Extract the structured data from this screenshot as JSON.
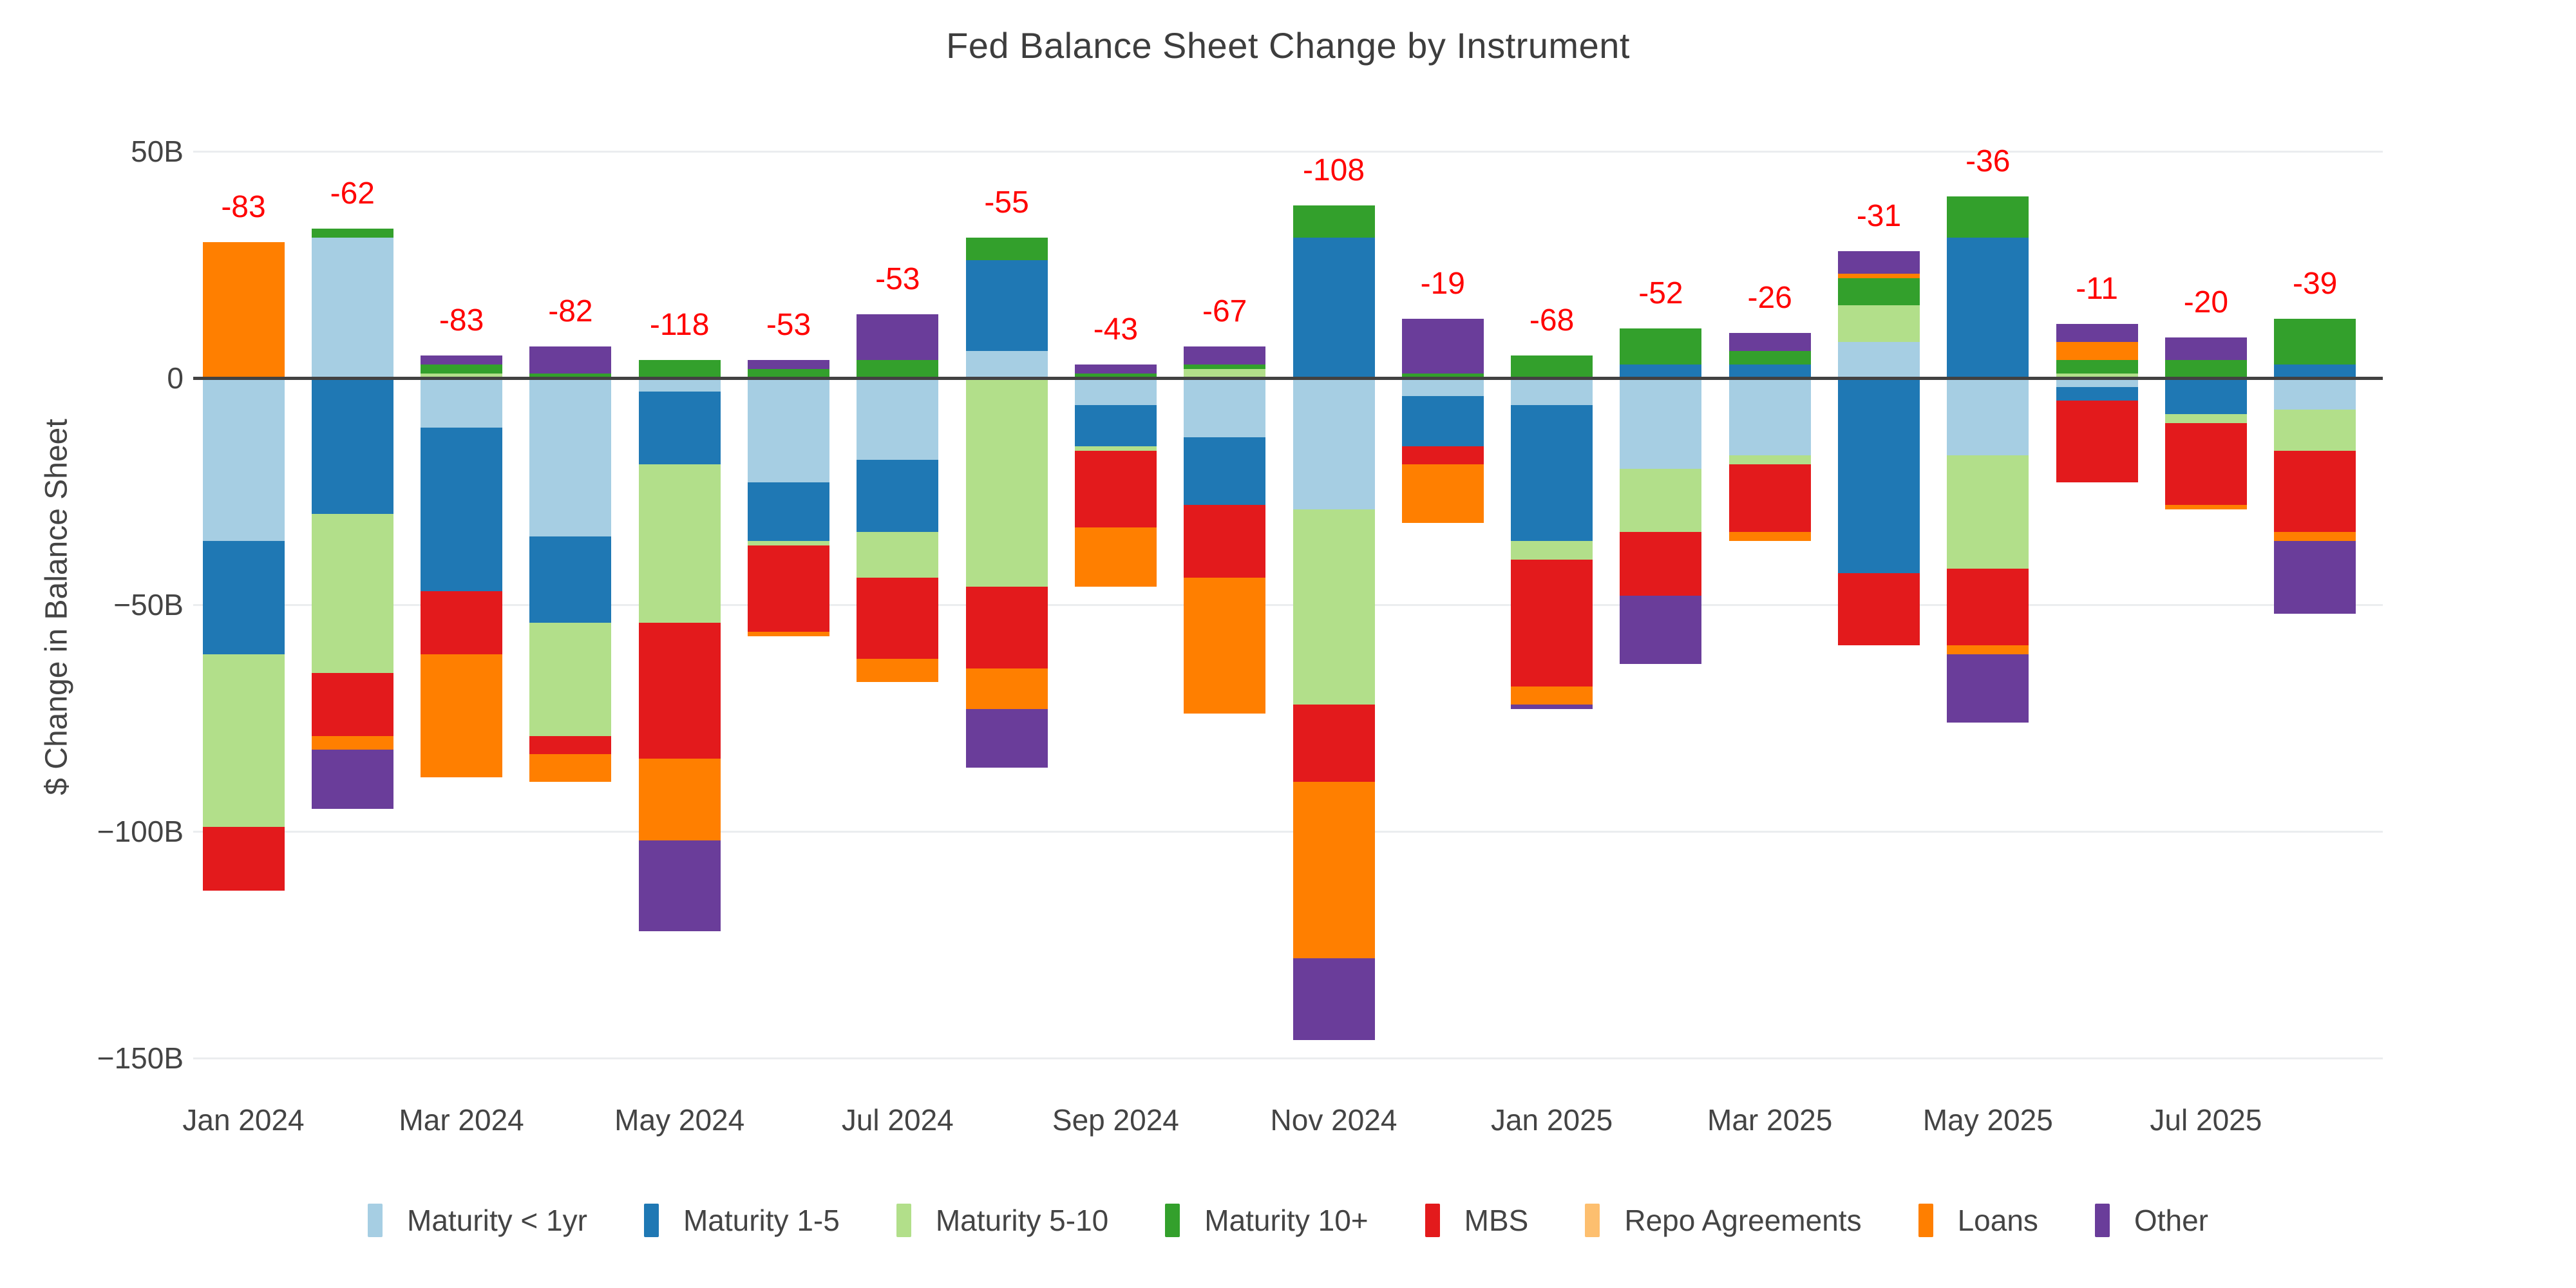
{
  "title": "Fed Balance Sheet Change by Instrument",
  "chart_data": {
    "type": "bar",
    "stacking": "relative",
    "title": "Fed Balance Sheet Change by Instrument",
    "xlabel": "",
    "ylabel": "$ Change in Balance Sheet",
    "unit": "billions USD",
    "ylim": [
      -160,
      55
    ],
    "grid": true,
    "legend_position": "bottom",
    "annotation_color": "#ff0000",
    "zero_line_color": "#424242",
    "gridline_color": "#ebedef",
    "tick_color": "#444444",
    "yticks": [
      {
        "value": 50,
        "label": "50B"
      },
      {
        "value": 0,
        "label": "0"
      },
      {
        "value": -50,
        "label": "−50B"
      },
      {
        "value": -100,
        "label": "−100B"
      },
      {
        "value": -150,
        "label": "−150B"
      }
    ],
    "categories": [
      "Jan 2024",
      "Feb 2024",
      "Mar 2024",
      "Apr 2024",
      "May 2024",
      "Jun 2024",
      "Jul 2024",
      "Aug 2024",
      "Sep 2024",
      "Oct 2024",
      "Nov 2024",
      "Dec 2024",
      "Jan 2025",
      "Feb 2025",
      "Mar 2025",
      "Apr 2025",
      "May 2025",
      "Jun 2025",
      "Jul 2025",
      "Aug 2025"
    ],
    "x_tick_labels": [
      "Jan 2024",
      "Mar 2024",
      "May 2024",
      "Jul 2024",
      "Sep 2024",
      "Nov 2024",
      "Jan 2025",
      "Mar 2025",
      "May 2025",
      "Jul 2025"
    ],
    "totals": [
      -83,
      -62,
      -83,
      -82,
      -118,
      -53,
      -53,
      -55,
      -43,
      -67,
      -108,
      -19,
      -68,
      -52,
      -26,
      -31,
      -36,
      -11,
      -20,
      -39
    ],
    "series": [
      {
        "name": "Maturity < 1yr",
        "color": "#a6cee3",
        "values": [
          -36,
          31,
          -11,
          -35,
          -3,
          -23,
          -18,
          6,
          -6,
          -13,
          -29,
          -4,
          -6,
          -20,
          -17,
          8,
          -17,
          -2,
          0,
          -7
        ]
      },
      {
        "name": "Maturity 1-5",
        "color": "#1f78b4",
        "values": [
          -25,
          -30,
          -36,
          -19,
          -16,
          -13,
          -16,
          20,
          -9,
          -15,
          31,
          -11,
          -30,
          3,
          3,
          -43,
          31,
          -3,
          -8,
          3
        ]
      },
      {
        "name": "Maturity 5-10",
        "color": "#b2df8a",
        "values": [
          -38,
          -35,
          1,
          -25,
          -35,
          -1,
          -10,
          -46,
          -1,
          2,
          -43,
          0,
          -4,
          -14,
          -2,
          8,
          -25,
          1,
          -2,
          -9
        ]
      },
      {
        "name": "Maturity 10+",
        "color": "#33a02c",
        "values": [
          0,
          2,
          2,
          1,
          4,
          2,
          4,
          5,
          1,
          1,
          7,
          1,
          5,
          8,
          3,
          6,
          9,
          3,
          4,
          10
        ]
      },
      {
        "name": "MBS",
        "color": "#e31a1c",
        "values": [
          -14,
          -14,
          -14,
          -4,
          -30,
          -19,
          -18,
          -18,
          -17,
          -16,
          -17,
          -4,
          -28,
          -14,
          -15,
          -16,
          -17,
          -18,
          -18,
          -18
        ]
      },
      {
        "name": "Repo Agreements",
        "color": "#fdbf6f",
        "values": [
          0,
          0,
          0,
          0,
          0,
          0,
          0,
          0,
          0,
          0,
          0,
          0,
          0,
          0,
          0,
          0,
          0,
          0,
          0,
          0
        ]
      },
      {
        "name": "Loans",
        "color": "#ff7f00",
        "values": [
          30,
          -3,
          -27,
          -6,
          -18,
          -1,
          -5,
          -9,
          -13,
          -30,
          -39,
          -13,
          -4,
          0,
          -2,
          1,
          -2,
          4,
          -1,
          -2
        ]
      },
      {
        "name": "Other",
        "color": "#6a3d9a",
        "values": [
          0,
          -13,
          2,
          6,
          -20,
          2,
          10,
          -13,
          2,
          4,
          -18,
          12,
          -1,
          -15,
          4,
          5,
          -15,
          4,
          5,
          -16
        ]
      }
    ]
  }
}
